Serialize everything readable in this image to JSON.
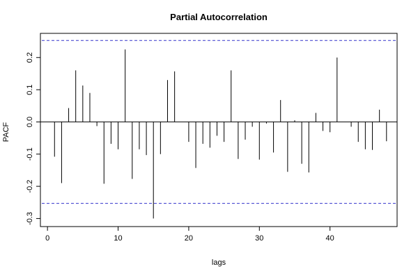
{
  "chart_data": {
    "type": "bar",
    "title": "Partial Autocorrelation",
    "xlabel": "lags",
    "ylabel": "PACF",
    "xlim": [
      -1,
      49.5
    ],
    "ylim": [
      -0.325,
      0.275
    ],
    "x_ticks": [
      0,
      10,
      20,
      30,
      40
    ],
    "y_ticks": [
      -0.3,
      -0.2,
      -0.1,
      0.0,
      0.1,
      0.2
    ],
    "y_tick_labels": [
      "-0.3",
      "-0.2",
      "-0.1",
      "0.0",
      "0.1",
      "0.2"
    ],
    "confidence_limits": [
      0.253,
      -0.253
    ],
    "confidence_color": "#3333cc",
    "grid": false,
    "lags": [
      1,
      2,
      3,
      4,
      5,
      6,
      7,
      8,
      9,
      10,
      11,
      12,
      13,
      14,
      15,
      16,
      17,
      18,
      19,
      20,
      21,
      22,
      23,
      24,
      25,
      26,
      27,
      28,
      29,
      30,
      31,
      32,
      33,
      34,
      35,
      36,
      37,
      38,
      39,
      40,
      41,
      42,
      43,
      44,
      45,
      46,
      47,
      48
    ],
    "values": [
      -0.108,
      -0.19,
      0.043,
      0.16,
      0.113,
      0.09,
      -0.013,
      -0.192,
      -0.068,
      -0.085,
      0.225,
      -0.177,
      -0.085,
      -0.103,
      -0.3,
      -0.1,
      0.13,
      0.157,
      0.0,
      -0.062,
      -0.143,
      -0.068,
      -0.08,
      -0.043,
      -0.062,
      0.16,
      -0.115,
      -0.055,
      -0.015,
      -0.117,
      -0.005,
      -0.095,
      0.068,
      -0.155,
      0.005,
      -0.13,
      -0.157,
      0.028,
      -0.028,
      -0.032,
      0.2,
      0.0,
      -0.015,
      -0.062,
      -0.085,
      -0.087,
      0.038,
      -0.06
    ]
  }
}
